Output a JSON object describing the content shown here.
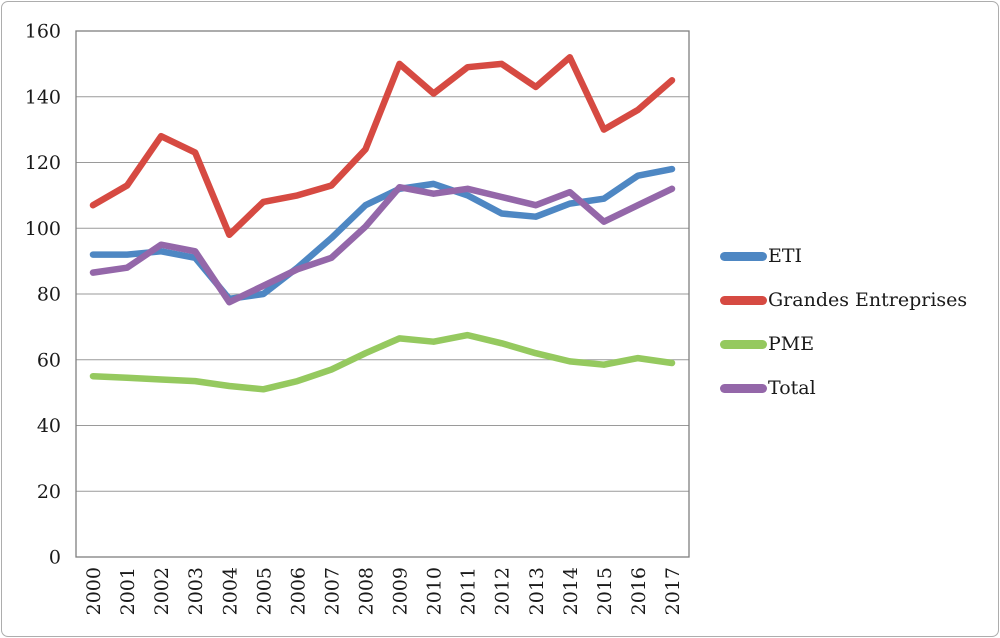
{
  "chart_data": {
    "type": "line",
    "title": "",
    "xlabel": "",
    "ylabel": "",
    "ylim": [
      0,
      160
    ],
    "ytick_step": 20,
    "y_ticks": [
      0,
      20,
      40,
      60,
      80,
      100,
      120,
      140,
      160
    ],
    "grid": true,
    "legend_position": "right",
    "categories": [
      "2000",
      "2001",
      "2002",
      "2003",
      "2004",
      "2005",
      "2006",
      "2007",
      "2008",
      "2009",
      "2010",
      "2011",
      "2012",
      "2013",
      "2014",
      "2015",
      "2016",
      "2017"
    ],
    "series": [
      {
        "name": "ETI",
        "color": "#4E87C3",
        "values": [
          92,
          92,
          93,
          91,
          78.5,
          80,
          88,
          97,
          107,
          112,
          113.5,
          110,
          104.5,
          103.5,
          107.5,
          109,
          116,
          118
        ]
      },
      {
        "name": "Grandes Entreprises",
        "color": "#D64A42",
        "values": [
          107,
          113,
          128,
          123,
          98,
          108,
          110,
          113,
          124,
          150,
          141,
          149,
          150,
          143,
          152,
          130,
          136,
          145
        ]
      },
      {
        "name": "PME",
        "color": "#95C95F",
        "values": [
          55,
          54.5,
          54,
          53.5,
          52,
          51,
          53.5,
          57,
          62,
          66.5,
          65.5,
          67.5,
          65,
          62,
          59.5,
          58.5,
          60.5,
          59
        ]
      },
      {
        "name": "Total",
        "color": "#9467A9",
        "values": [
          86.5,
          88,
          95,
          93,
          77.5,
          82.5,
          87.5,
          91,
          100.5,
          112.5,
          110.5,
          112,
          109.5,
          107,
          111,
          102,
          107,
          112
        ]
      }
    ],
    "styles": {
      "grid_color": "#9a9a9a",
      "axis_color": "#7f7f7f",
      "line_width": 6.5
    }
  }
}
